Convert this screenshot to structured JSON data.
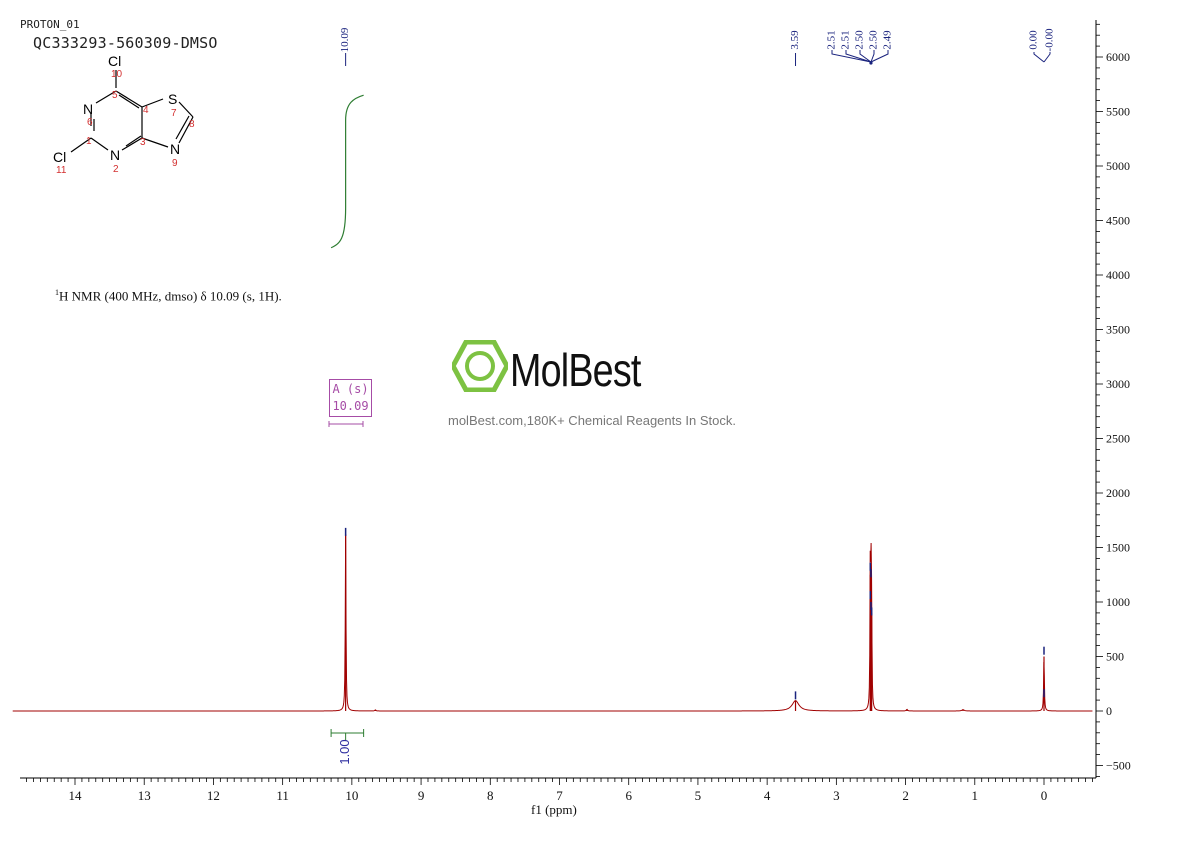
{
  "header": {
    "experiment": "PROTON_01",
    "sample_id": "QC333293-560309-DMSO"
  },
  "nmr_summary": {
    "nucleus_sup": "1",
    "text": "H NMR (400 MHz, dmso) δ 10.09 (s, 1H)."
  },
  "structure": {
    "atoms": [
      {
        "symbol": "Cl",
        "label": "10"
      },
      {
        "symbol": "N",
        "label": "6"
      },
      {
        "symbol": "S",
        "label": "7"
      },
      {
        "symbol": "Cl",
        "label": "11"
      },
      {
        "symbol": "N",
        "label": "2"
      },
      {
        "symbol": "N",
        "label": "9"
      }
    ],
    "ring_numbers": [
      "5",
      "4",
      "1",
      "3",
      "8"
    ]
  },
  "watermark": {
    "brand": "MolBest",
    "tagline": "molBest.com,180K+ Chemical Reagents In Stock.",
    "brand_color": "#7dc242"
  },
  "peak_label": {
    "line1": "A (s)",
    "line2": "10.09"
  },
  "chart_data": {
    "type": "line",
    "xlabel": "f1 (ppm)",
    "x_reversed": true,
    "xlim": [
      14.9,
      -0.7
    ],
    "ylim": [
      -600,
      6300
    ],
    "x_ticks": [
      14,
      13,
      12,
      11,
      10,
      9,
      8,
      7,
      6,
      5,
      4,
      3,
      2,
      1,
      0
    ],
    "y_ticks": [
      -500,
      0,
      500,
      1000,
      1500,
      2000,
      2500,
      3000,
      3500,
      4000,
      4500,
      5000,
      5500,
      6000
    ],
    "series": [
      {
        "name": "spectrum",
        "color": "#a00000",
        "peaks": [
          {
            "ppm": 10.09,
            "height": 1620,
            "width": 0.006
          },
          {
            "ppm": 9.66,
            "height": 10,
            "width": 0.01
          },
          {
            "ppm": 3.59,
            "height": 95,
            "width": 0.06
          },
          {
            "ppm": 2.51,
            "height": 1250,
            "width": 0.005
          },
          {
            "ppm": 2.5,
            "height": 1280,
            "width": 0.005
          },
          {
            "ppm": 2.49,
            "height": 900,
            "width": 0.005
          },
          {
            "ppm": 1.98,
            "height": 15,
            "width": 0.01
          },
          {
            "ppm": 1.17,
            "height": 12,
            "width": 0.02
          },
          {
            "ppm": 0.0,
            "height": 500,
            "width": 0.006
          }
        ]
      }
    ],
    "peak_picks": [
      {
        "label": "10.09",
        "ppm": 10.09,
        "marker_height": 1680
      },
      {
        "label": "3.59",
        "ppm": 3.59,
        "marker_height": 180
      },
      {
        "label": "2.51",
        "ppm": 2.51,
        "marker_height": 1360
      },
      {
        "label": "2.51",
        "ppm": 2.51,
        "marker_height": 1100
      },
      {
        "label": "2.50",
        "ppm": 2.5,
        "marker_height": 1300
      },
      {
        "label": "2.50",
        "ppm": 2.5,
        "marker_height": 1000
      },
      {
        "label": "2.49",
        "ppm": 2.49,
        "marker_height": 950
      },
      {
        "label": "0.00",
        "ppm": 0.0,
        "marker_height": 590
      },
      {
        "label": "-0.00",
        "ppm": 0.0,
        "marker_height": 200
      }
    ],
    "integrals": [
      {
        "from": 10.3,
        "to": 9.83,
        "value": "1.00",
        "color": "#2e7d32",
        "curve_from": 4250,
        "curve_to": 5650
      }
    ],
    "colors": {
      "spectrum": "#a00000",
      "peak_pick": "#1a237e",
      "integral": "#2e7d32",
      "multiplet": "#a64ca6"
    }
  }
}
